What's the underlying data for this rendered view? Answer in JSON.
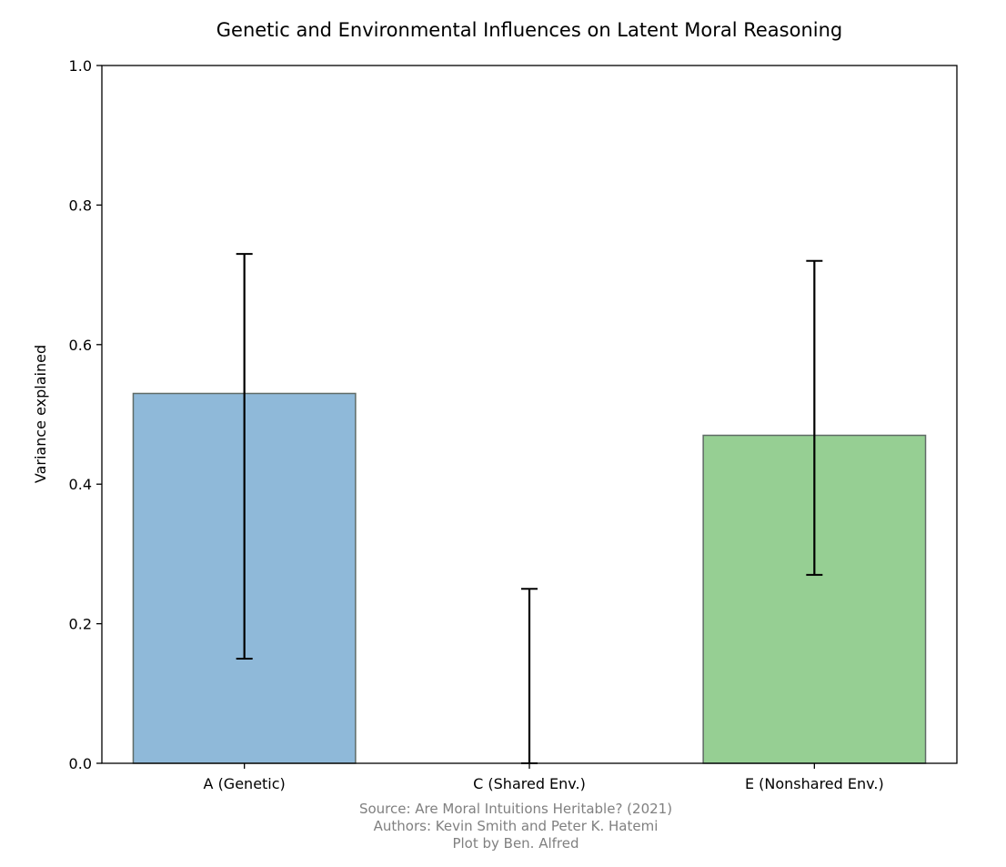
{
  "chart_data": {
    "type": "bar",
    "title": "Genetic and Environmental Influences on Latent Moral Reasoning",
    "xlabel": "",
    "ylabel": "Variance explained",
    "ylim": [
      0,
      1.0
    ],
    "yticks": [
      "0.0",
      "0.2",
      "0.4",
      "0.6",
      "0.8",
      "1.0"
    ],
    "grid": false,
    "categories": [
      "A (Genetic)",
      "C (Shared Env.)",
      "E (Nonshared Env.)"
    ],
    "values": [
      0.53,
      0.0,
      0.47
    ],
    "error_low": [
      0.15,
      0.0,
      0.27
    ],
    "error_high": [
      0.73,
      0.25,
      0.72
    ],
    "colors": [
      "#8fb9d9",
      "#ffffff",
      "#96cf93"
    ],
    "edge_color": "#5f6b66"
  },
  "footer": {
    "line1": "Source: Are Moral Intuitions Heritable? (2021)",
    "line2": "Authors: Kevin Smith and Peter K. Hatemi",
    "line3": "Plot by Ben. Alfred"
  }
}
